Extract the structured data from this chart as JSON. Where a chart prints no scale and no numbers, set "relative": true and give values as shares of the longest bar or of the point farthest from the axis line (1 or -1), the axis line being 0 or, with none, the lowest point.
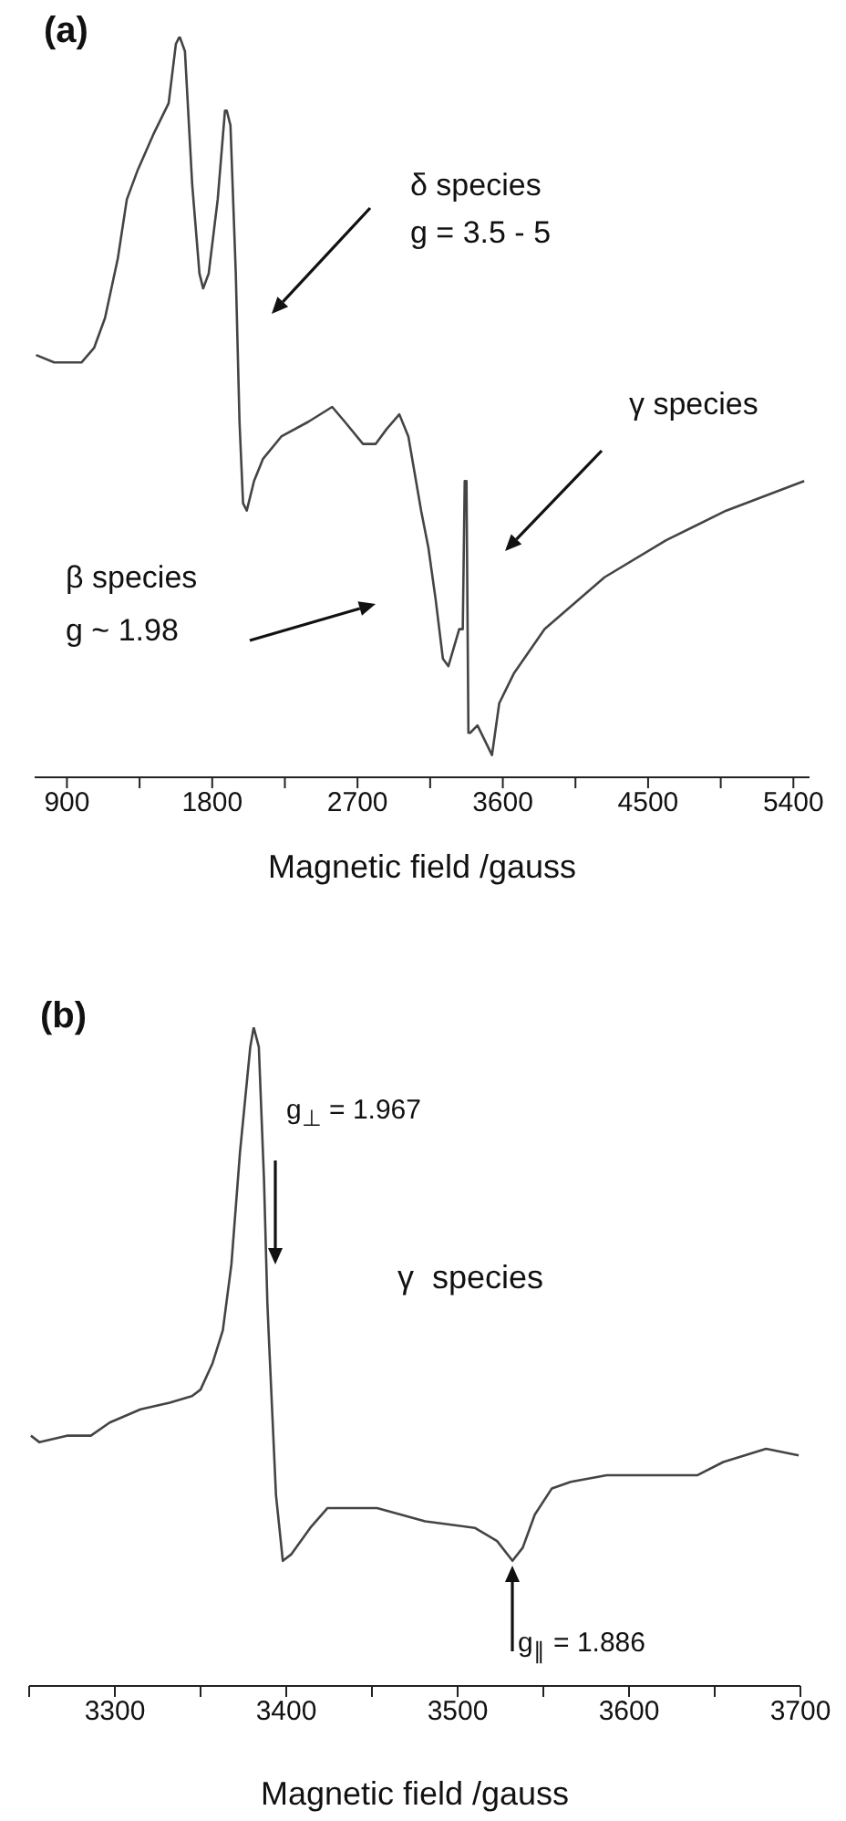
{
  "chart_data": [
    {
      "type": "line",
      "title": "(a)",
      "xlabel": "Magnetic field /gauss",
      "relative": true,
      "xlim": [
        700,
        5500
      ],
      "xticks": [
        900,
        {
          "value": 1350,
          "label": null
        },
        1800,
        {
          "value": 2250,
          "label": null
        },
        2700,
        {
          "value": 3150,
          "label": null
        },
        3600,
        {
          "value": 4050,
          "label": null
        },
        4500,
        {
          "value": 4950,
          "label": null
        },
        5400
      ],
      "x": [
        709,
        821,
        990,
        1069,
        1136,
        1215,
        1271,
        1339,
        1440,
        1530,
        1575,
        1598,
        1631,
        1676,
        1721,
        1744,
        1778,
        1834,
        1879,
        1890,
        1913,
        1946,
        1969,
        1991,
        2014,
        2059,
        2115,
        2228,
        2396,
        2543,
        2621,
        2734,
        2813,
        2880,
        2959,
        3015,
        3094,
        3139,
        3184,
        3229,
        3263,
        3330,
        3352,
        3364,
        3375,
        3387,
        3398,
        3443,
        3533,
        3578,
        3668,
        3859,
        4230,
        4612,
        4984,
        5467
      ],
      "series": [
        {
          "color": "#444444",
          "values": [
            0.57,
            0.56,
            0.56,
            0.58,
            0.62,
            0.7,
            0.78,
            0.82,
            0.87,
            0.91,
            0.99,
            1,
            0.98,
            0.8,
            0.68,
            0.66,
            0.68,
            0.78,
            0.9,
            0.9,
            0.88,
            0.68,
            0.48,
            0.37,
            0.36,
            0.4,
            0.43,
            0.46,
            0.48,
            0.5,
            0.48,
            0.45,
            0.45,
            0.47,
            0.49,
            0.46,
            0.36,
            0.31,
            0.24,
            0.16,
            0.15,
            0.2,
            0.2,
            0.4,
            0.4,
            0.06,
            0.06,
            0.07,
            0.03,
            0.1,
            0.14,
            0.2,
            0.27,
            0.32,
            0.36,
            0.4
          ]
        }
      ],
      "annotations": [
        "δ species",
        "g = 3.5 - 5",
        "γ species",
        "β species",
        "g ~ 1.98"
      ]
    },
    {
      "type": "line",
      "title": "(b)",
      "xlabel": "Magnetic field /gauss",
      "relative": true,
      "xlim": [
        3250,
        3700
      ],
      "xticks": [
        {
          "value": 3250,
          "label": null
        },
        3300,
        {
          "value": 3350,
          "label": null
        },
        3400,
        {
          "value": 3450,
          "label": null
        },
        3500,
        {
          "value": 3550,
          "label": null
        },
        3600,
        {
          "value": 3650,
          "label": null
        },
        3700
      ],
      "x": [
        3251,
        3256,
        3272,
        3286,
        3297,
        3315,
        3332,
        3345,
        3350,
        3357,
        3363,
        3368,
        3373,
        3379,
        3381,
        3384,
        3387,
        3389,
        3390,
        3394,
        3398,
        3403,
        3414,
        3424,
        3435,
        3453,
        3481,
        3510,
        3523,
        3532,
        3538,
        3545,
        3555,
        3566,
        3587,
        3616,
        3640,
        3655,
        3680,
        3699
      ],
      "series": [
        {
          "color": "#444444",
          "values": [
            0.38,
            0.37,
            0.38,
            0.38,
            0.4,
            0.42,
            0.43,
            0.44,
            0.45,
            0.49,
            0.54,
            0.64,
            0.81,
            0.97,
            1,
            0.97,
            0.77,
            0.58,
            0.52,
            0.29,
            0.19,
            0.2,
            0.24,
            0.27,
            0.27,
            0.27,
            0.25,
            0.24,
            0.22,
            0.19,
            0.21,
            0.26,
            0.3,
            0.31,
            0.32,
            0.32,
            0.32,
            0.34,
            0.36,
            0.35
          ]
        }
      ],
      "annotations": [
        "g$_{⊥}$ = 1.967",
        "γ  species",
        "g$_{∥}$ = 1.886"
      ]
    }
  ]
}
